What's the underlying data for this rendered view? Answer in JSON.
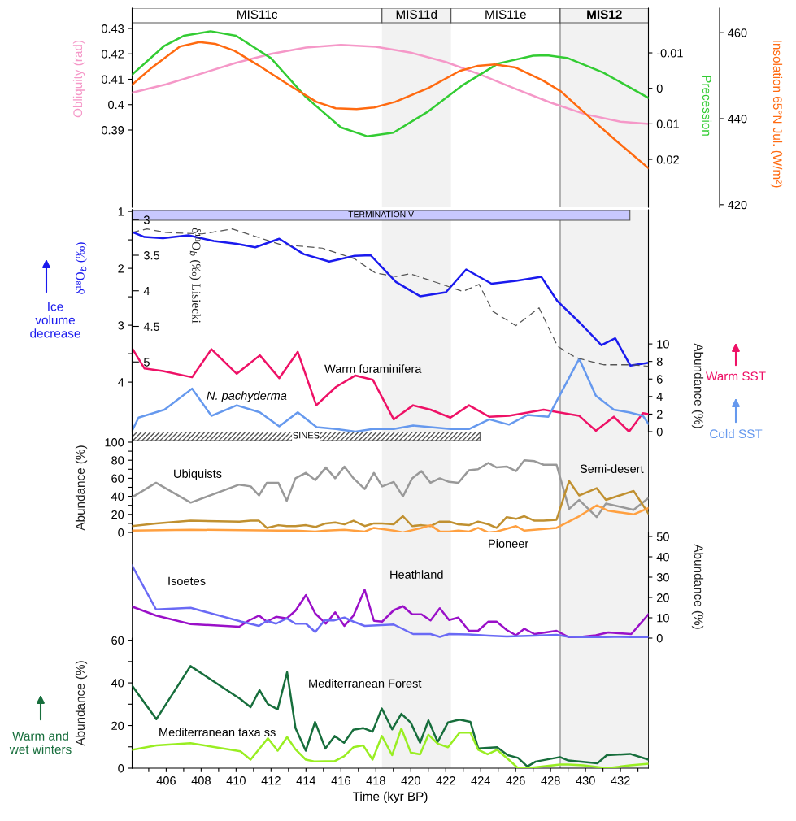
{
  "chart_data": [
    {
      "type": "line",
      "xlim": [
        404.05,
        433.6
      ],
      "tick_labels": "y",
      "ylim": [
        0.3596,
        0.438
      ],
      "yticks": [
        0.39,
        0.4,
        0.41,
        0.42,
        0.43
      ],
      "y2lim": [
        0.0335,
        -0.0226
      ],
      "y2ticks": [
        -0.01,
        0,
        0.01,
        0.02
      ],
      "y3lim": [
        419.4,
        465.7
      ],
      "y3ticks": [
        420,
        440,
        460
      ],
      "ylabel": "Obliquity (rad)",
      "y2label": "Precession",
      "y3label": "Insolation 65°N Jul. (W/m²)",
      "bands": [
        {
          "axis": "x",
          "from": 404.05,
          "to": 418.35,
          "label": "MIS11c",
          "color": "#ffffff"
        },
        {
          "axis": "x",
          "from": 418.35,
          "to": 422.3,
          "label": "MIS11d",
          "color": "#f2f2f2"
        },
        {
          "axis": "x",
          "from": 422.3,
          "to": 428.55,
          "label": "MIS11e",
          "color": "#ffffff"
        },
        {
          "axis": "x",
          "from": 428.55,
          "to": 433.6,
          "label": "MIS12",
          "color": "#f2f2f2"
        },
        {
          "axis": "x",
          "from": 418.35,
          "to": 422.3,
          "color": "#f2f2f2"
        },
        {
          "axis": "x",
          "from": 428.55,
          "to": 433.6,
          "color": "#f2f2f2"
        }
      ],
      "ref_lines": [
        {
          "axis": "x",
          "value": 428.55,
          "color": "#888888"
        }
      ],
      "series": [
        {
          "color": "#f598c8",
          "x": [
            404.05,
            406,
            408,
            410,
            412,
            414,
            416,
            418,
            420,
            422,
            424,
            426,
            428,
            430,
            432,
            433.6
          ],
          "values": [
            0.4047,
            0.408,
            0.4122,
            0.4165,
            0.42,
            0.4225,
            0.4235,
            0.4228,
            0.4205,
            0.4168,
            0.4118,
            0.4062,
            0.4008,
            0.3962,
            0.3933,
            0.3924
          ]
        },
        {
          "color": "#33cc33",
          "axis": "y2",
          "x": [
            404.05,
            405.9,
            407,
            408.54,
            410,
            412,
            414,
            416,
            417.5,
            419,
            421,
            423,
            425,
            427,
            427.8,
            429,
            431,
            433.6
          ],
          "values": [
            -0.0039,
            -0.012,
            -0.0148,
            -0.0161,
            -0.0148,
            -0.0085,
            0.0025,
            0.011,
            0.0135,
            0.0125,
            0.0065,
            -0.001,
            -0.007,
            -0.0092,
            -0.0093,
            -0.0085,
            -0.0045,
            0.0027
          ]
        },
        {
          "color": "#ff6a10",
          "axis": "y3",
          "x": [
            404.05,
            405.1,
            406.8,
            407.9,
            408.8,
            409.9,
            411.2,
            412.8,
            414.6,
            415.7,
            416.9,
            417.9,
            419.1,
            421,
            422.8,
            423.85,
            424.8,
            426,
            427.55,
            428.6,
            430.45,
            431.8,
            433.6
          ],
          "values": [
            447.9,
            451.6,
            456.8,
            457.8,
            457.4,
            455.8,
            452.6,
            448.4,
            443.9,
            442.4,
            442.2,
            442.6,
            443.9,
            447.1,
            451.1,
            452.3,
            452.6,
            451.9,
            448.9,
            446.3,
            439.5,
            434.7,
            428.5
          ]
        }
      ]
    },
    {
      "type": "line",
      "xlim": [
        404.05,
        433.6
      ],
      "tick_labels": "y",
      "ylim": [
        4.87,
        0.97
      ],
      "yticks": [
        1,
        {
          "value": 1.5,
          "label": null
        },
        2,
        {
          "value": 2.5,
          "label": null
        },
        3,
        {
          "value": 3.5,
          "label": null
        },
        4
      ],
      "y2lim": [
        0,
        25.3
      ],
      "y2ticks": [
        0,
        2,
        4,
        6,
        8,
        10
      ],
      "y3lim": [
        5.98,
        2.86
      ],
      "y3ticks": [
        3,
        3.5,
        4,
        4.5,
        5
      ],
      "ylabel": "δ¹⁸O$_{b}$ (‰)",
      "y2label": "Abundance (%)",
      "y3label": "δ¹⁸O$_{b}$ (‰) Lisiecki",
      "annotations": [
        "Ice\nvolume\ndecrease",
        "Warm SST",
        "Cold SST"
      ],
      "bands": [
        {
          "axis": "x",
          "from": 404.05,
          "to": 432.54,
          "label": "TERMINATION V",
          "color": "#c8c8ff"
        },
        {
          "axis": "x",
          "from": 418.35,
          "to": 422.3,
          "color": "#f2f2f2"
        },
        {
          "axis": "x",
          "from": 428.55,
          "to": 433.6,
          "color": "#f2f2f2"
        }
      ],
      "ref_lines": [
        {
          "axis": "x",
          "value": 428.55,
          "color": "#888888"
        }
      ],
      "series": [
        {
          "color": "#1a1aee",
          "x": [
            404.05,
            404.76,
            405.82,
            407.27,
            408.72,
            410.04,
            411.1,
            412.47,
            413.87,
            415.33,
            416.78,
            417.7,
            419.15,
            420.53,
            422.01,
            423.17,
            424.62,
            426.02,
            427.47,
            428.4,
            429.72,
            430.91,
            431.7,
            432.57,
            433.6
          ],
          "values": [
            1.36,
            1.45,
            1.47,
            1.42,
            1.52,
            1.57,
            1.63,
            1.48,
            1.75,
            1.88,
            1.78,
            1.77,
            2.24,
            2.49,
            2.42,
            2.02,
            2.27,
            2.22,
            2.15,
            2.58,
            2.97,
            3.35,
            3.23,
            3.71,
            3.66
          ]
        },
        {
          "color": "#555555",
          "axis": "y3",
          "line_style": "dashed",
          "x": [
            404.05,
            404.9,
            405.95,
            408.06,
            409.78,
            412.55,
            414.93,
            416.78,
            417.97,
            419.15,
            419.95,
            421.8,
            422.98,
            423.91,
            424.7,
            426.02,
            427.34,
            428.4,
            429.45,
            431.04,
            432.57,
            433.6
          ],
          "values": [
            3.18,
            3.13,
            3.18,
            3.2,
            3.13,
            3.35,
            3.4,
            3.55,
            3.75,
            3.8,
            3.76,
            3.91,
            4.01,
            3.91,
            4.29,
            4.49,
            4.24,
            4.78,
            4.94,
            5.04,
            5.04,
            5.06
          ]
        },
        {
          "name": "Warm foraminifera",
          "color": "#ee1166",
          "axis": "y2",
          "x": [
            404.05,
            404.76,
            405.82,
            407.48,
            408.59,
            410.04,
            411.36,
            412.47,
            413.53,
            414.59,
            415.72,
            416.83,
            417.83,
            419.02,
            420.13,
            421.13,
            422.27,
            423.33,
            424.49,
            425.62,
            427.6,
            429.64,
            430.59,
            431.62,
            432.49,
            433.28,
            433.6
          ],
          "values": [
            9.5,
            7.2,
            6.9,
            6.2,
            9.4,
            6.6,
            8.7,
            6.1,
            9.1,
            3.0,
            5.1,
            6.4,
            5.9,
            1.4,
            3.0,
            2.5,
            1.6,
            3.0,
            1.7,
            1.8,
            2.5,
            1.8,
            0.1,
            1.7,
            0,
            2.1,
            2.0
          ]
        },
        {
          "name": "N. pachyderma",
          "color": "#6699ee",
          "axis": "y2",
          "x": [
            404.05,
            404.42,
            405.9,
            407.48,
            408.59,
            410.04,
            411.36,
            412.47,
            413.53,
            414.61,
            415.72,
            416.83,
            417.83,
            419.02,
            420.13,
            422.27,
            423.33,
            424.49,
            425.62,
            426.68,
            427.87,
            429.64,
            430.59,
            431.62,
            432.49,
            433.28,
            433.6
          ],
          "values": [
            0.1,
            1.6,
            2.5,
            4.9,
            1.8,
            3.0,
            2.2,
            0.6,
            2.2,
            0.5,
            0.3,
            0,
            0.3,
            0.3,
            0.7,
            0.3,
            0.3,
            1.4,
            0.8,
            1.9,
            1.7,
            8.3,
            4.1,
            2.5,
            2.2,
            1.8,
            0.9
          ]
        }
      ]
    },
    {
      "type": "line",
      "xlim": [
        404.05,
        433.6
      ],
      "tick_labels": "y",
      "ylim": [
        0,
        111.7
      ],
      "yticks": [
        0,
        {
          "value": 10,
          "label": null
        },
        20,
        {
          "value": 30,
          "label": null
        },
        40,
        {
          "value": 50,
          "label": null
        },
        60,
        {
          "value": 70,
          "label": null
        },
        80,
        {
          "value": 90,
          "label": null
        },
        100
      ],
      "ylabel": "Abundance (%)",
      "bands": [
        {
          "axis": "x",
          "from": 404.05,
          "to": 423.96,
          "label": "SINES"
        },
        {
          "axis": "x",
          "from": 418.35,
          "to": 422.3,
          "color": "#f2f2f2"
        },
        {
          "axis": "x",
          "from": 428.55,
          "to": 433.6,
          "color": "#f2f2f2"
        }
      ],
      "ref_lines": [
        {
          "axis": "x",
          "value": 428.55,
          "color": "#888888"
        }
      ],
      "series": [
        {
          "name": "Ubiquists",
          "color": "#999999",
          "x": [
            404.05,
            405.42,
            407.4,
            410.18,
            410.84,
            411.31,
            411.76,
            412.42,
            412.9,
            413.4,
            414.0,
            414.53,
            415.14,
            415.67,
            416.2,
            416.72,
            417.36,
            417.89,
            418.36,
            419.02,
            419.55,
            420.08,
            420.61,
            421.13,
            421.66,
            422.19,
            422.72,
            423.33,
            423.85,
            424.44,
            424.91,
            425.49,
            426.02,
            426.5,
            427.08,
            427.6,
            428.34,
            429.06,
            429.64,
            430.64,
            431.17,
            432.75,
            433.6
          ],
          "values": [
            39,
            55,
            33,
            53,
            51,
            41,
            55,
            55,
            35,
            60,
            66,
            58,
            72,
            60,
            73,
            60,
            48,
            66,
            51,
            56,
            40,
            60,
            68,
            55,
            60,
            56,
            55,
            69,
            70,
            77,
            72,
            73,
            68,
            80,
            79,
            75,
            75,
            26,
            36,
            17,
            32,
            25,
            38
          ]
        },
        {
          "name": "Semi-desert",
          "color": "#c09030",
          "x": [
            404.05,
            405.42,
            407.4,
            410.18,
            410.84,
            411.31,
            411.76,
            412.42,
            412.9,
            413.4,
            414.0,
            414.53,
            415.14,
            415.67,
            416.2,
            416.72,
            417.36,
            417.89,
            418.36,
            419.02,
            419.55,
            420.08,
            420.61,
            421.13,
            421.66,
            422.19,
            422.72,
            423.33,
            423.85,
            424.44,
            424.91,
            425.49,
            426.02,
            426.5,
            427.08,
            427.6,
            428.34,
            429.06,
            429.64,
            430.64,
            431.17,
            432.75,
            433.6
          ],
          "values": [
            7,
            10,
            13,
            12,
            13,
            13,
            5,
            8,
            7,
            7,
            8,
            6,
            10,
            11,
            9,
            13,
            7,
            10,
            10,
            9,
            18,
            7,
            8,
            7,
            12,
            12,
            9,
            8,
            12,
            9,
            5,
            17,
            15,
            18,
            13,
            13,
            14,
            57,
            41,
            49,
            36,
            46,
            21
          ]
        },
        {
          "name": "Pioneer",
          "color": "#ffa040",
          "x": [
            404.05,
            407.4,
            412.42,
            413.4,
            414.53,
            415.14,
            416.2,
            417.36,
            417.89,
            419.02,
            419.55,
            420.61,
            421.13,
            421.66,
            422.19,
            422.72,
            423.33,
            423.85,
            424.44,
            424.91,
            425.49,
            426.02,
            426.5,
            428.34,
            429.64,
            430.64,
            431.3,
            432.75,
            433.6
          ],
          "values": [
            2,
            3,
            2,
            2,
            1,
            2,
            3,
            1,
            5,
            2,
            0,
            5,
            8,
            1,
            1,
            2,
            1,
            5,
            0,
            1,
            4,
            7,
            2,
            5,
            18,
            30,
            24,
            20,
            27
          ]
        }
      ]
    },
    {
      "type": "line",
      "xlim": [
        404.05,
        433.6
      ],
      "tick_labels": "y",
      "y2lim": [
        0,
        52
      ],
      "y2ticks": [
        0,
        10,
        20,
        30,
        40,
        50
      ],
      "y2label": "Abundance (%)",
      "bands": [
        {
          "axis": "x",
          "from": 418.35,
          "to": 422.3,
          "color": "#f2f2f2"
        },
        {
          "axis": "x",
          "from": 428.55,
          "to": 433.6,
          "color": "#f2f2f2"
        }
      ],
      "ref_lines": [
        {
          "axis": "x",
          "value": 428.55,
          "color": "#888888"
        }
      ],
      "series": [
        {
          "name": "Heathland",
          "color": "#9a10c8",
          "axis": "y2",
          "x": [
            404.05,
            405.42,
            407.4,
            410.18,
            410.7,
            411.31,
            411.76,
            412.29,
            412.9,
            413.4,
            414.0,
            414.53,
            415.14,
            415.67,
            416.2,
            416.72,
            417.36,
            417.89,
            418.36,
            419.02,
            419.55,
            420.08,
            420.61,
            421.13,
            421.66,
            422.19,
            422.72,
            423.33,
            423.85,
            424.44,
            424.91,
            425.49,
            426.02,
            426.5,
            427.08,
            428.34,
            429.06,
            429.72,
            430.59,
            431.3,
            432.62,
            433.6
          ],
          "values": [
            15.5,
            11.1,
            6.9,
            5.6,
            8.5,
            11.1,
            8.1,
            10.5,
            9.7,
            13.5,
            21.2,
            12.1,
            7.1,
            12.7,
            6,
            11.1,
            23.8,
            8.5,
            8.1,
            13.7,
            15.7,
            11.7,
            11.7,
            8.7,
            14.7,
            8.9,
            10.1,
            3.6,
            3.6,
            8.1,
            8.1,
            4,
            1.4,
            4.6,
            2,
            3.6,
            0.4,
            0.6,
            1.4,
            2.8,
            2,
            11.7
          ]
        },
        {
          "name": "Isoetes",
          "color": "#6a6af5",
          "axis": "y2",
          "x": [
            404.05,
            405.42,
            407.4,
            410.31,
            411.31,
            411.76,
            412.29,
            412.9,
            413.4,
            414.0,
            414.53,
            415.06,
            415.59,
            416.2,
            416.72,
            417.36,
            419.02,
            420.13,
            421.13,
            421.66,
            422.19,
            423.33,
            424.44,
            425.49,
            427.08,
            428.34,
            429.06,
            430.59,
            431.62,
            433.6
          ],
          "values": [
            35.7,
            14.1,
            14.9,
            8.1,
            6,
            8.5,
            7.1,
            9.7,
            7.1,
            7.1,
            3,
            8.7,
            8.7,
            10.1,
            8.1,
            6,
            6.7,
            2,
            2,
            0.6,
            2,
            1.8,
            1.2,
            0.8,
            1.2,
            1.6,
            0.6,
            0.4,
            0.6,
            0.4
          ]
        }
      ]
    },
    {
      "type": "line",
      "xlim": [
        404.05,
        433.6
      ],
      "xticks": [
        {
          "value": 405,
          "label": null
        },
        406,
        {
          "value": 407,
          "label": null
        },
        408,
        {
          "value": 409,
          "label": null
        },
        410,
        {
          "value": 411,
          "label": null
        },
        412,
        {
          "value": 413,
          "label": null
        },
        414,
        {
          "value": 415,
          "label": null
        },
        416,
        {
          "value": 417,
          "label": null
        },
        418,
        {
          "value": 419,
          "label": null
        },
        420,
        {
          "value": 421,
          "label": null
        },
        422,
        {
          "value": 423,
          "label": null
        },
        424,
        {
          "value": 425,
          "label": null
        },
        426,
        {
          "value": 427,
          "label": null
        },
        428,
        {
          "value": 429,
          "label": null
        },
        430,
        {
          "value": 431,
          "label": null
        },
        432,
        {
          "value": 433,
          "label": null
        }
      ],
      "ylim": [
        0,
        61
      ],
      "yticks": [
        0,
        {
          "value": 10,
          "label": null
        },
        20,
        {
          "value": 30,
          "label": null
        },
        40,
        {
          "value": 50,
          "label": null
        },
        60
      ],
      "xlabel": "Time (kyr BP)",
      "ylabel": "Abundance (%)",
      "annotations": [
        "Warm and\nwet winters"
      ],
      "bands": [
        {
          "axis": "x",
          "from": 418.35,
          "to": 422.3,
          "color": "#f2f2f2"
        },
        {
          "axis": "x",
          "from": 428.55,
          "to": 433.6,
          "color": "#f2f2f2"
        }
      ],
      "ref_lines": [
        {
          "axis": "x",
          "value": 428.55,
          "color": "#888888"
        }
      ],
      "series": [
        {
          "name": "Mediterranean Forest",
          "color": "#176e3c",
          "x": [
            404.05,
            405.44,
            407.39,
            410.25,
            410.83,
            411.34,
            411.82,
            412.38,
            412.92,
            413.4,
            413.99,
            414.52,
            415.11,
            415.64,
            416.18,
            416.71,
            417.27,
            417.81,
            418.34,
            418.93,
            419.46,
            420.0,
            420.53,
            421.01,
            421.54,
            422.13,
            422.79,
            423.41,
            423.86,
            424.94,
            425.55,
            426.14,
            426.67,
            427.15,
            428.54,
            429.02,
            430.68,
            431.22,
            432.55,
            433.6
          ],
          "values": [
            38.7,
            23,
            47.9,
            32.4,
            28.6,
            36.6,
            30.1,
            27.6,
            45,
            18.8,
            8.2,
            21.7,
            9.2,
            15.1,
            11.9,
            18,
            18.8,
            17.1,
            28,
            18.2,
            25.5,
            21.3,
            11.9,
            22.4,
            12.3,
            21.5,
            22.8,
            21.7,
            9.2,
            9.8,
            6.1,
            4.8,
            0.8,
            3.1,
            5.2,
            3.6,
            2.3,
            6.1,
            6.7,
            4
          ]
        },
        {
          "name": "Mediterranean taxa ss",
          "color": "#99ee22",
          "x": [
            404.05,
            405.44,
            407.39,
            410.25,
            410.83,
            411.82,
            412.38,
            412.92,
            413.4,
            413.99,
            414.52,
            415.64,
            416.18,
            416.71,
            417.27,
            417.81,
            418.34,
            418.93,
            419.46,
            420.0,
            420.53,
            421.01,
            421.54,
            422.13,
            422.79,
            423.41,
            423.86,
            424.4,
            424.94,
            425.55,
            426.14,
            426.67,
            428.54,
            429.02,
            429.88,
            431.22,
            432.55,
            433.6
          ],
          "values": [
            8.6,
            10.7,
            11.7,
            7.9,
            4,
            14,
            8.2,
            14.6,
            8.8,
            4,
            3.1,
            3.3,
            5.6,
            9.8,
            10.7,
            4,
            15.1,
            6.1,
            18.6,
            7.3,
            6.5,
            15.7,
            11.5,
            9.8,
            16.7,
            16.7,
            8.6,
            6.5,
            8.6,
            4.4,
            0,
            0,
            1.7,
            1.7,
            1.3,
            0,
            1.3,
            2.1
          ]
        }
      ]
    }
  ]
}
